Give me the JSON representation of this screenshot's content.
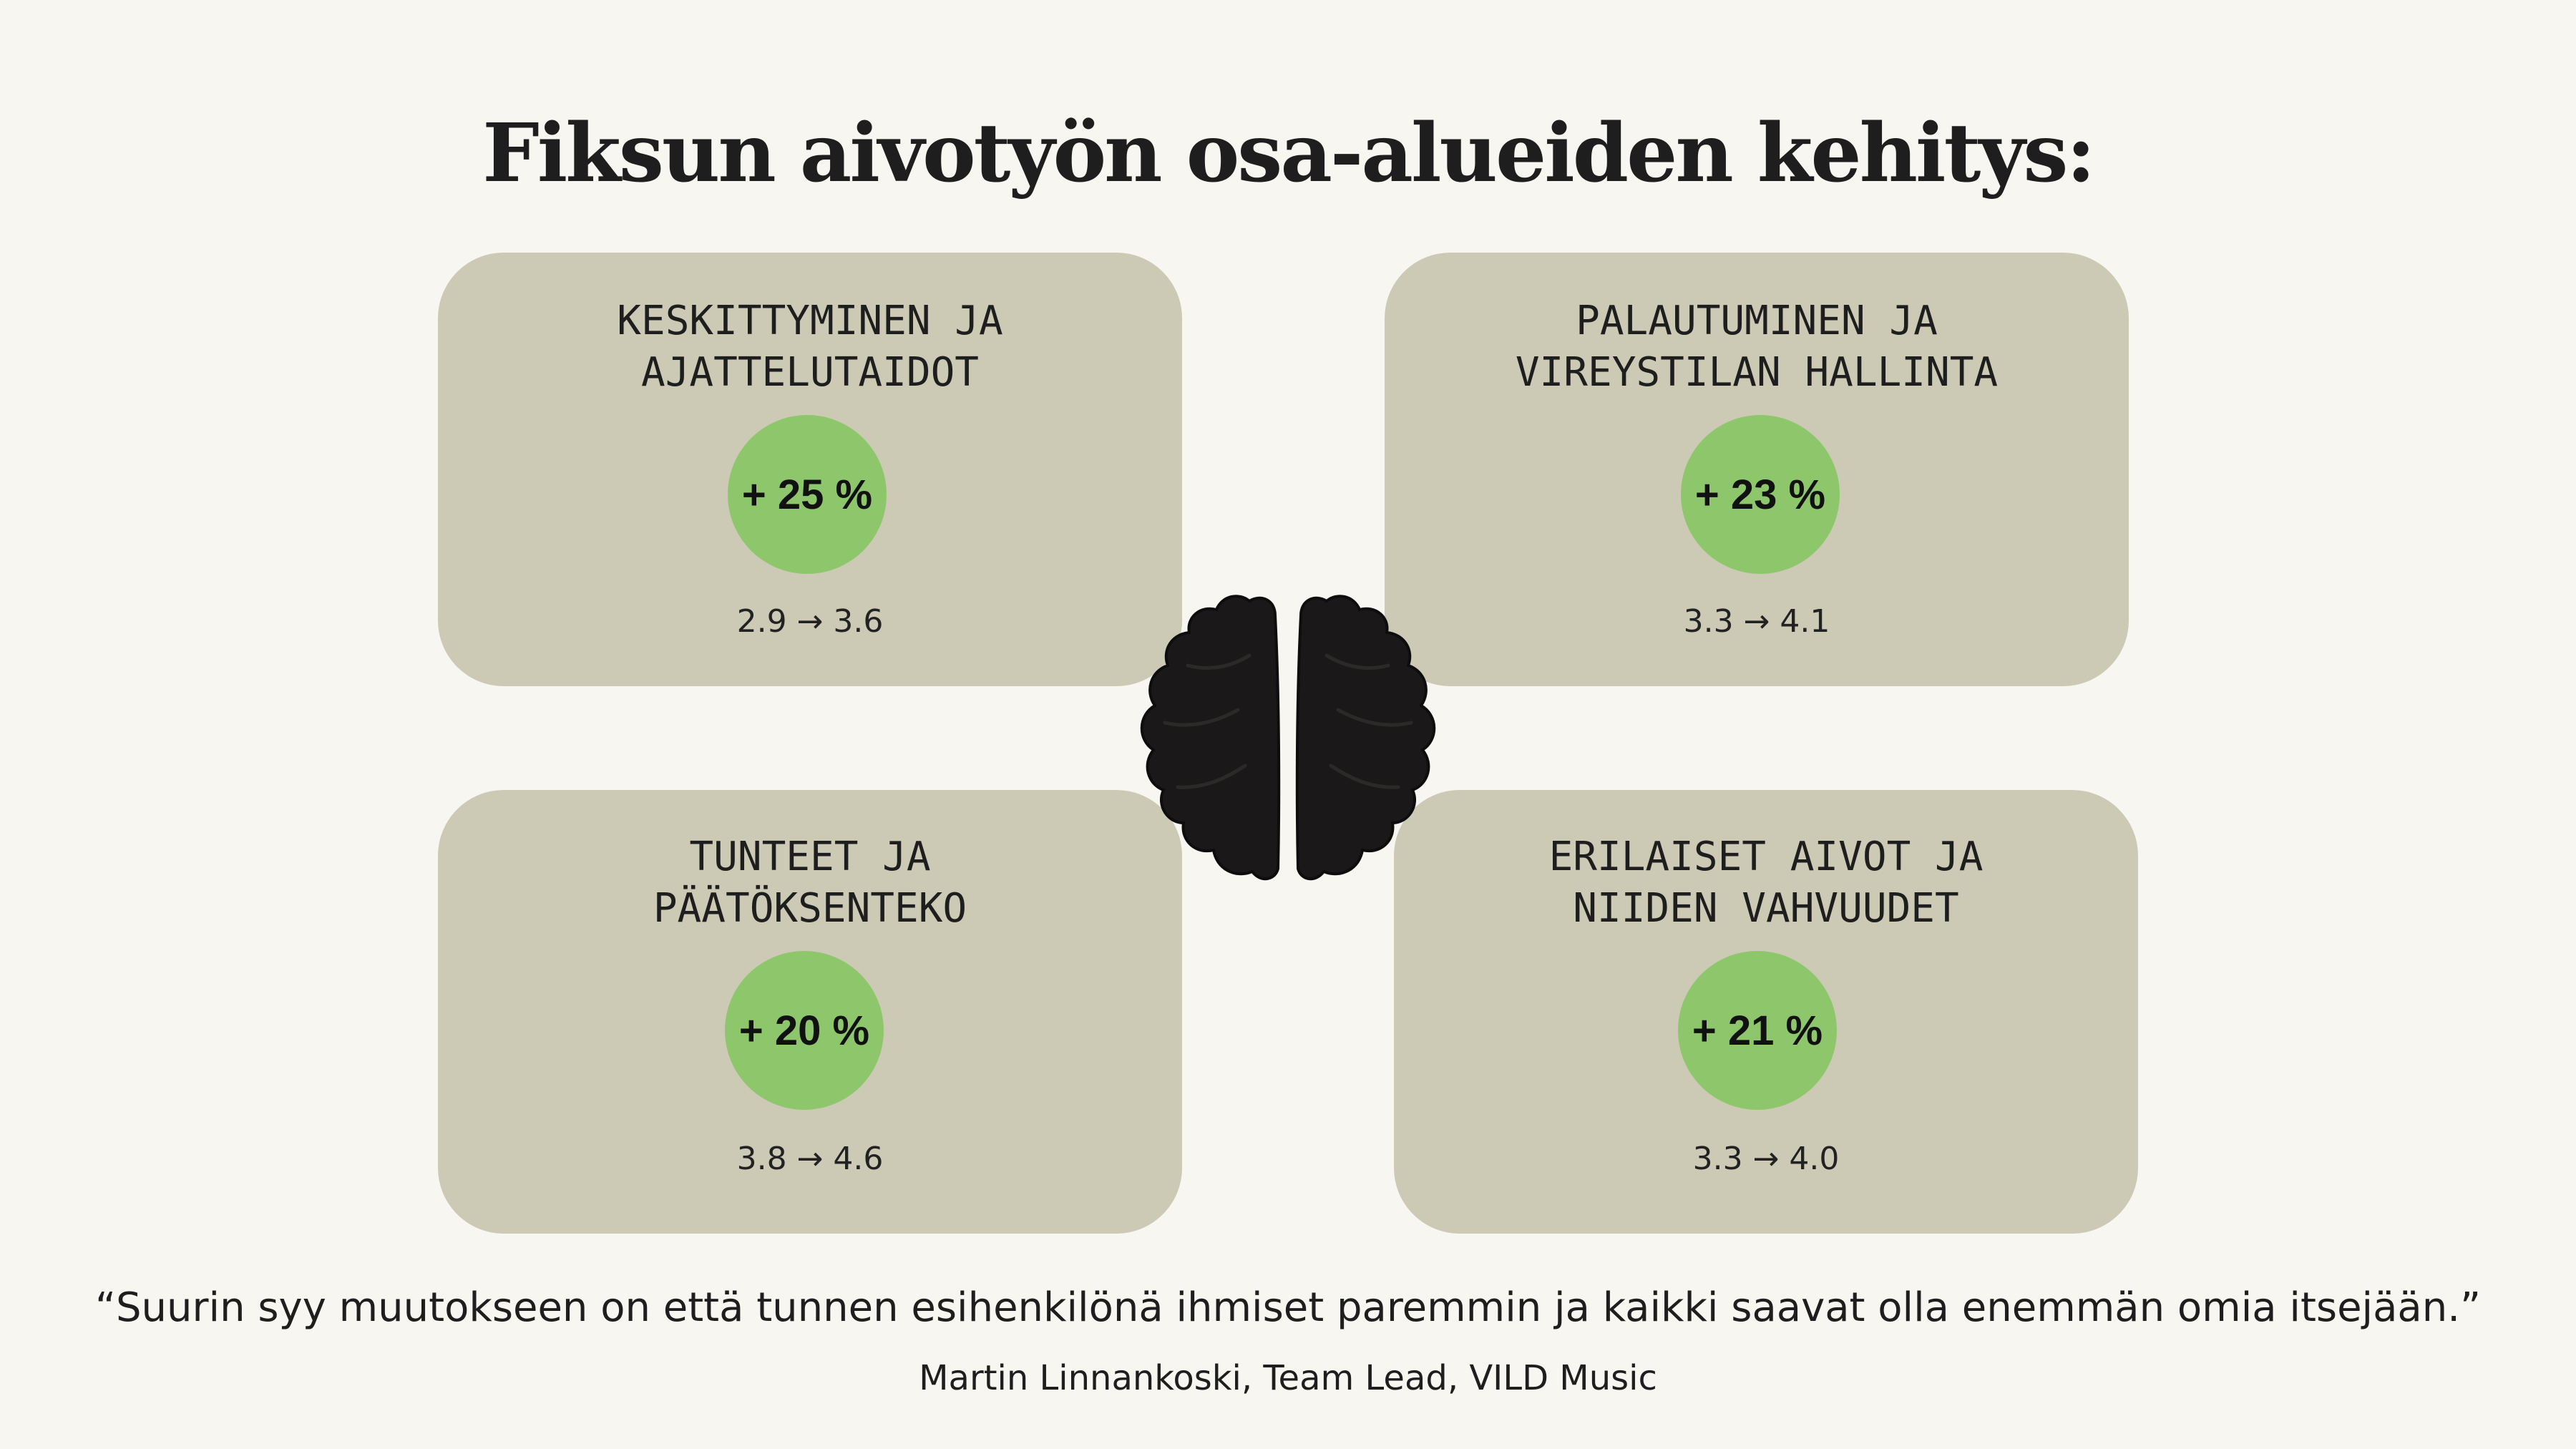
{
  "title": "Fiksun aivotyön osa-alueiden kehitys:",
  "colors": {
    "background": "#f7f6f1",
    "card": "#ccc9b5",
    "badge": "#8ec76b",
    "brain": "#1a1818"
  },
  "cards": [
    {
      "title": "KESKITTYMINEN JA\nAJATTELUTAIDOT",
      "change": "+ 25 %",
      "scores": "2.9 → 3.6"
    },
    {
      "title": "PALAUTUMINEN JA\nVIREYSTILAN HALLINTA",
      "change": "+ 23 %",
      "scores": "3.3 → 4.1"
    },
    {
      "title": "TUNTEET JA\nPÄÄTÖKSENTEKO",
      "change": "+ 20 %",
      "scores": "3.8 → 4.6"
    },
    {
      "title": "ERILAISET AIVOT JA\nNIIDEN VAHVUUDET",
      "change": "+ 21 %",
      "scores": "3.3 → 4.0"
    }
  ],
  "center_icon": "brain-icon",
  "quote": "“Suurin syy muutokseen on että tunnen esihenkilönä ihmiset paremmin ja kaikki saavat olla enemmän omia itsejään.”",
  "attribution": "Martin Linnankoski, Team Lead, VILD Music"
}
